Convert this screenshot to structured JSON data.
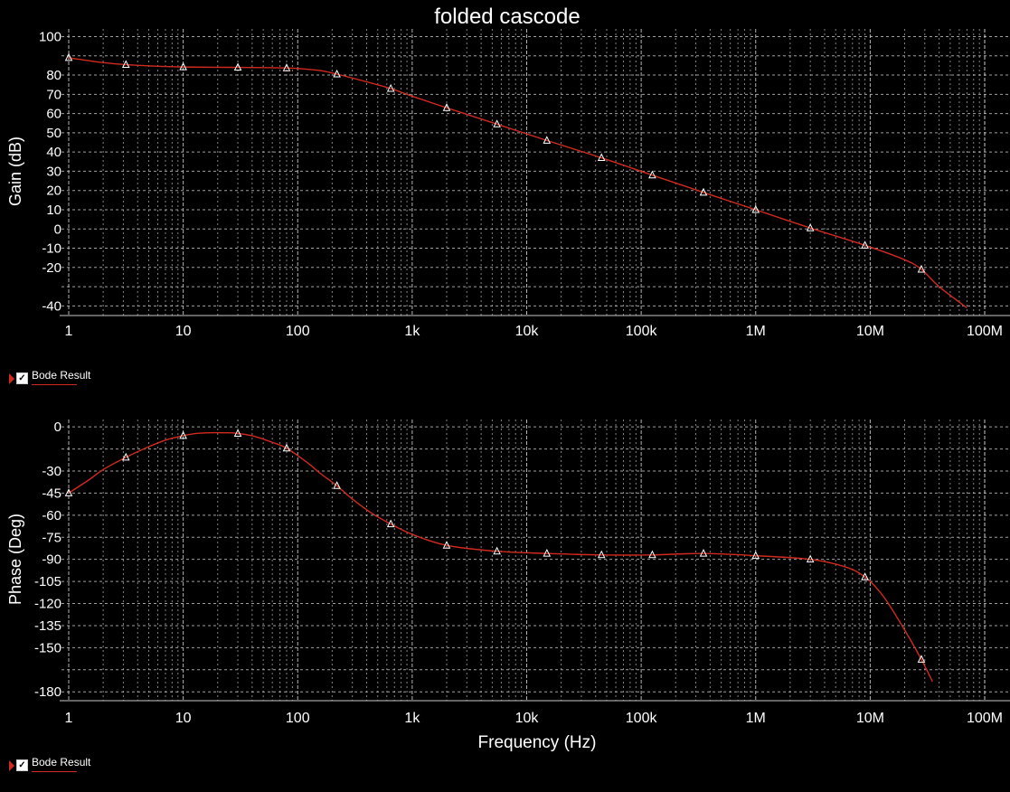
{
  "colors": {
    "background": "#000000",
    "grid": "#c8c8c8",
    "trace": "#d22a1e",
    "text": "#ffffff"
  },
  "legend": {
    "label": "Bode Result",
    "checked": true,
    "checkbox_icon": "checkmark-icon",
    "marker_icon": "red-triangle-marker-icon"
  },
  "chart_data": [
    {
      "type": "line",
      "title": "folded cascode",
      "xlabel": "",
      "ylabel": "Gain (dB)",
      "xscale": "log",
      "xlim": [
        1,
        100000000
      ],
      "ylim": [
        -45,
        104
      ],
      "grid": true,
      "xtick_labels": [
        "1",
        "10",
        "100",
        "1k",
        "10k",
        "100k",
        "1M",
        "10M",
        "100M"
      ],
      "ytick_labels": [
        "100",
        "80",
        "70",
        "60",
        "50",
        "40",
        "30",
        "20",
        "10",
        "0",
        "-10",
        "-20",
        "-40"
      ],
      "ytick_values": [
        100,
        80,
        70,
        60,
        50,
        40,
        30,
        20,
        10,
        0,
        -10,
        -20,
        -40
      ],
      "series": [
        {
          "name": "Bode Result",
          "x": [
            1,
            2,
            3,
            5,
            10,
            30,
            80,
            150,
            220,
            400,
            650,
            1000,
            2000,
            5500,
            15000,
            45000,
            125000,
            350000,
            1000000,
            3000000,
            9000000,
            20000000,
            28000000,
            40000000,
            70000000
          ],
          "y": [
            89,
            86.5,
            85.5,
            84.8,
            84.2,
            84,
            83.7,
            82.5,
            80.5,
            76.5,
            73,
            69,
            63,
            54.5,
            46,
            37,
            28,
            19,
            10,
            0.5,
            -8.5,
            -16,
            -21,
            -30,
            -41
          ]
        }
      ],
      "marker_x": [
        1,
        3.16,
        10,
        30,
        80,
        220,
        650,
        2000,
        5500,
        15000,
        45000,
        125000,
        350000,
        1000000,
        3000000,
        9000000,
        28000000
      ]
    },
    {
      "type": "line",
      "title": "",
      "xlabel": "Frequency (Hz)",
      "ylabel": "Phase (Deg)",
      "xscale": "log",
      "xlim": [
        1,
        100000000
      ],
      "ylim": [
        -186,
        5
      ],
      "grid": true,
      "xtick_labels": [
        "1",
        "10",
        "100",
        "1k",
        "10k",
        "100k",
        "1M",
        "10M",
        "100M"
      ],
      "ytick_labels": [
        "0",
        "-30",
        "-45",
        "-60",
        "-75",
        "-90",
        "-105",
        "-120",
        "-135",
        "-150",
        "-180"
      ],
      "ytick_values": [
        0,
        -30,
        -45,
        -60,
        -75,
        -90,
        -105,
        -120,
        -135,
        -150,
        -180
      ],
      "series": [
        {
          "name": "Bode Result",
          "x": [
            1,
            1.5,
            2,
            3.2,
            5,
            7,
            10,
            13,
            17,
            22,
            28,
            40,
            60,
            80,
            120,
            160,
            220,
            300,
            450,
            650,
            1000,
            2000,
            5500,
            15000,
            45000,
            125000,
            350000,
            1000000,
            3000000,
            6000000,
            9000000,
            13000000,
            20000000,
            28000000,
            35000000
          ],
          "y": [
            -45,
            -36,
            -29,
            -20.5,
            -13.5,
            -9,
            -6,
            -4.5,
            -4,
            -4,
            -4.2,
            -6,
            -10.5,
            -14.5,
            -24,
            -32,
            -40,
            -49,
            -59,
            -66,
            -73,
            -80.5,
            -84.5,
            -86,
            -87,
            -87,
            -86,
            -87.5,
            -90,
            -95,
            -102,
            -115,
            -138,
            -158,
            -173
          ]
        }
      ],
      "marker_x": [
        1,
        3.16,
        10,
        30,
        80,
        220,
        650,
        2000,
        5500,
        15000,
        45000,
        125000,
        350000,
        1000000,
        3000000,
        9000000,
        28000000
      ]
    }
  ]
}
